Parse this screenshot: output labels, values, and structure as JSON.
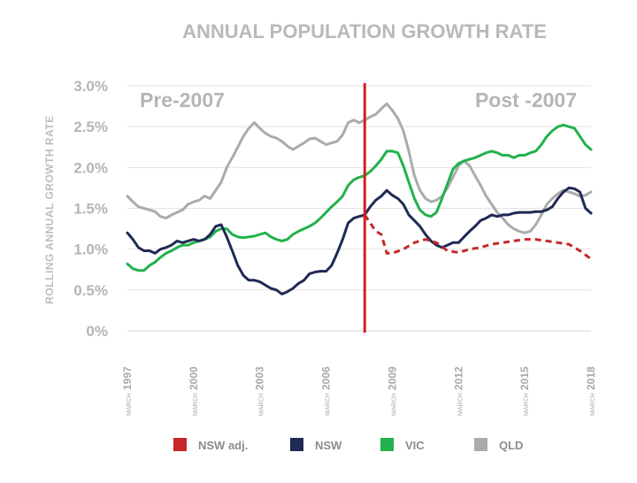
{
  "chart_data": {
    "type": "line",
    "title": "ANNUAL POPULATION GROWTH RATE",
    "xlabel": "",
    "ylabel": "ROLLING ANNUAL GROWTH RATE",
    "xlim": [
      1997,
      2018
    ],
    "ylim": [
      0,
      3.0
    ],
    "y_ticks": [
      {
        "value": 3.0,
        "label": "3.0%"
      },
      {
        "value": 2.5,
        "label": "2.5%"
      },
      {
        "value": 2.0,
        "label": "2.0%"
      },
      {
        "value": 1.5,
        "label": "1.5%"
      },
      {
        "value": 1.0,
        "label": "1.0%"
      },
      {
        "value": 0.5,
        "label": "0.5%"
      },
      {
        "value": 0.0,
        "label": "0%"
      }
    ],
    "x_ticks": [
      {
        "value": 1997,
        "month": "MARCH",
        "year": "1997"
      },
      {
        "value": 2000,
        "month": "MARCH",
        "year": "2000"
      },
      {
        "value": 2003,
        "month": "MARCH",
        "year": "2003"
      },
      {
        "value": 2006,
        "month": "MARCH",
        "year": "2006"
      },
      {
        "value": 2009,
        "month": "MARCH",
        "year": "2009"
      },
      {
        "value": 2012,
        "month": "MARCH",
        "year": "2012"
      },
      {
        "value": 2015,
        "month": "MARCH",
        "year": "2015"
      },
      {
        "value": 2018,
        "month": "MARCH",
        "year": "2018"
      }
    ],
    "grid": "horizontal",
    "divider": {
      "x": 2007.75,
      "color": "#d3201f"
    },
    "annotations": [
      {
        "text": "Pre-2007",
        "position": "top-left"
      },
      {
        "text": "Post -2007",
        "position": "top-right"
      }
    ],
    "series": [
      {
        "name": "NSW adj.",
        "color": "#c62828",
        "dashed": true,
        "points": [
          [
            2007.75,
            1.42
          ],
          [
            2008.0,
            1.32
          ],
          [
            2008.25,
            1.22
          ],
          [
            2008.5,
            1.18
          ],
          [
            2008.75,
            0.95
          ],
          [
            2009.0,
            0.95
          ],
          [
            2009.5,
            1.0
          ],
          [
            2010.0,
            1.08
          ],
          [
            2010.5,
            1.12
          ],
          [
            2011.0,
            1.08
          ],
          [
            2011.5,
            0.98
          ],
          [
            2012.0,
            0.96
          ],
          [
            2012.5,
            1.0
          ],
          [
            2013.0,
            1.02
          ],
          [
            2013.5,
            1.06
          ],
          [
            2014.0,
            1.08
          ],
          [
            2014.5,
            1.1
          ],
          [
            2015.0,
            1.12
          ],
          [
            2015.5,
            1.12
          ],
          [
            2016.0,
            1.1
          ],
          [
            2016.5,
            1.08
          ],
          [
            2017.0,
            1.06
          ],
          [
            2017.5,
            0.98
          ],
          [
            2018.0,
            0.88
          ]
        ]
      },
      {
        "name": "NSW",
        "color": "#1f2a55",
        "dashed": false,
        "points": [
          [
            1997.0,
            1.2
          ],
          [
            1997.25,
            1.12
          ],
          [
            1997.5,
            1.02
          ],
          [
            1997.75,
            0.98
          ],
          [
            1998.0,
            0.98
          ],
          [
            1998.25,
            0.95
          ],
          [
            1998.5,
            1.0
          ],
          [
            1998.75,
            1.02
          ],
          [
            1999.0,
            1.05
          ],
          [
            1999.25,
            1.1
          ],
          [
            1999.5,
            1.08
          ],
          [
            1999.75,
            1.1
          ],
          [
            2000.0,
            1.12
          ],
          [
            2000.25,
            1.1
          ],
          [
            2000.5,
            1.12
          ],
          [
            2000.75,
            1.18
          ],
          [
            2001.0,
            1.28
          ],
          [
            2001.25,
            1.3
          ],
          [
            2001.5,
            1.15
          ],
          [
            2001.75,
            0.98
          ],
          [
            2002.0,
            0.8
          ],
          [
            2002.25,
            0.68
          ],
          [
            2002.5,
            0.62
          ],
          [
            2002.75,
            0.62
          ],
          [
            2003.0,
            0.6
          ],
          [
            2003.25,
            0.56
          ],
          [
            2003.5,
            0.52
          ],
          [
            2003.75,
            0.5
          ],
          [
            2004.0,
            0.45
          ],
          [
            2004.25,
            0.48
          ],
          [
            2004.5,
            0.52
          ],
          [
            2004.75,
            0.58
          ],
          [
            2005.0,
            0.62
          ],
          [
            2005.25,
            0.7
          ],
          [
            2005.5,
            0.72
          ],
          [
            2005.75,
            0.73
          ],
          [
            2006.0,
            0.73
          ],
          [
            2006.25,
            0.8
          ],
          [
            2006.5,
            0.95
          ],
          [
            2006.75,
            1.12
          ],
          [
            2007.0,
            1.32
          ],
          [
            2007.25,
            1.38
          ],
          [
            2007.5,
            1.4
          ],
          [
            2007.75,
            1.42
          ],
          [
            2008.0,
            1.52
          ],
          [
            2008.25,
            1.6
          ],
          [
            2008.5,
            1.65
          ],
          [
            2008.75,
            1.72
          ],
          [
            2009.0,
            1.66
          ],
          [
            2009.25,
            1.62
          ],
          [
            2009.5,
            1.55
          ],
          [
            2009.75,
            1.42
          ],
          [
            2010.0,
            1.35
          ],
          [
            2010.25,
            1.28
          ],
          [
            2010.5,
            1.18
          ],
          [
            2010.75,
            1.1
          ],
          [
            2011.0,
            1.05
          ],
          [
            2011.25,
            1.02
          ],
          [
            2011.5,
            1.05
          ],
          [
            2011.75,
            1.08
          ],
          [
            2012.0,
            1.08
          ],
          [
            2012.25,
            1.15
          ],
          [
            2012.5,
            1.22
          ],
          [
            2012.75,
            1.28
          ],
          [
            2013.0,
            1.35
          ],
          [
            2013.25,
            1.38
          ],
          [
            2013.5,
            1.42
          ],
          [
            2013.75,
            1.4
          ],
          [
            2014.0,
            1.42
          ],
          [
            2014.25,
            1.42
          ],
          [
            2014.5,
            1.44
          ],
          [
            2014.75,
            1.45
          ],
          [
            2015.0,
            1.45
          ],
          [
            2015.25,
            1.45
          ],
          [
            2015.5,
            1.46
          ],
          [
            2015.75,
            1.46
          ],
          [
            2016.0,
            1.48
          ],
          [
            2016.25,
            1.52
          ],
          [
            2016.5,
            1.62
          ],
          [
            2016.75,
            1.7
          ],
          [
            2017.0,
            1.75
          ],
          [
            2017.25,
            1.74
          ],
          [
            2017.5,
            1.7
          ],
          [
            2017.75,
            1.5
          ],
          [
            2018.0,
            1.44
          ]
        ]
      },
      {
        "name": "VIC",
        "color": "#22b14c",
        "dashed": false,
        "points": [
          [
            1997.0,
            0.82
          ],
          [
            1997.25,
            0.76
          ],
          [
            1997.5,
            0.74
          ],
          [
            1997.75,
            0.74
          ],
          [
            1998.0,
            0.8
          ],
          [
            1998.25,
            0.84
          ],
          [
            1998.5,
            0.9
          ],
          [
            1998.75,
            0.95
          ],
          [
            1999.0,
            0.98
          ],
          [
            1999.25,
            1.02
          ],
          [
            1999.5,
            1.05
          ],
          [
            1999.75,
            1.05
          ],
          [
            2000.0,
            1.08
          ],
          [
            2000.25,
            1.1
          ],
          [
            2000.5,
            1.12
          ],
          [
            2000.75,
            1.15
          ],
          [
            2001.0,
            1.22
          ],
          [
            2001.25,
            1.25
          ],
          [
            2001.5,
            1.25
          ],
          [
            2001.75,
            1.18
          ],
          [
            2002.0,
            1.15
          ],
          [
            2002.25,
            1.14
          ],
          [
            2002.5,
            1.15
          ],
          [
            2002.75,
            1.16
          ],
          [
            2003.0,
            1.18
          ],
          [
            2003.25,
            1.2
          ],
          [
            2003.5,
            1.15
          ],
          [
            2003.75,
            1.12
          ],
          [
            2004.0,
            1.1
          ],
          [
            2004.25,
            1.12
          ],
          [
            2004.5,
            1.18
          ],
          [
            2004.75,
            1.22
          ],
          [
            2005.0,
            1.25
          ],
          [
            2005.25,
            1.28
          ],
          [
            2005.5,
            1.32
          ],
          [
            2005.75,
            1.38
          ],
          [
            2006.0,
            1.45
          ],
          [
            2006.25,
            1.52
          ],
          [
            2006.5,
            1.58
          ],
          [
            2006.75,
            1.65
          ],
          [
            2007.0,
            1.78
          ],
          [
            2007.25,
            1.85
          ],
          [
            2007.5,
            1.88
          ],
          [
            2007.75,
            1.9
          ],
          [
            2008.0,
            1.95
          ],
          [
            2008.25,
            2.02
          ],
          [
            2008.5,
            2.1
          ],
          [
            2008.75,
            2.2
          ],
          [
            2009.0,
            2.2
          ],
          [
            2009.25,
            2.18
          ],
          [
            2009.5,
            2.02
          ],
          [
            2009.75,
            1.82
          ],
          [
            2010.0,
            1.62
          ],
          [
            2010.25,
            1.48
          ],
          [
            2010.5,
            1.42
          ],
          [
            2010.75,
            1.4
          ],
          [
            2011.0,
            1.45
          ],
          [
            2011.25,
            1.62
          ],
          [
            2011.5,
            1.8
          ],
          [
            2011.75,
            1.98
          ],
          [
            2012.0,
            2.05
          ],
          [
            2012.25,
            2.08
          ],
          [
            2012.5,
            2.1
          ],
          [
            2012.75,
            2.12
          ],
          [
            2013.0,
            2.15
          ],
          [
            2013.25,
            2.18
          ],
          [
            2013.5,
            2.2
          ],
          [
            2013.75,
            2.18
          ],
          [
            2014.0,
            2.15
          ],
          [
            2014.25,
            2.15
          ],
          [
            2014.5,
            2.12
          ],
          [
            2014.75,
            2.15
          ],
          [
            2015.0,
            2.15
          ],
          [
            2015.25,
            2.18
          ],
          [
            2015.5,
            2.2
          ],
          [
            2015.75,
            2.28
          ],
          [
            2016.0,
            2.38
          ],
          [
            2016.25,
            2.45
          ],
          [
            2016.5,
            2.5
          ],
          [
            2016.75,
            2.52
          ],
          [
            2017.0,
            2.5
          ],
          [
            2017.25,
            2.48
          ],
          [
            2017.5,
            2.38
          ],
          [
            2017.75,
            2.28
          ],
          [
            2018.0,
            2.22
          ]
        ]
      },
      {
        "name": "QLD",
        "color": "#ababab",
        "dashed": false,
        "points": [
          [
            1997.0,
            1.65
          ],
          [
            1997.25,
            1.58
          ],
          [
            1997.5,
            1.52
          ],
          [
            1997.75,
            1.5
          ],
          [
            1998.0,
            1.48
          ],
          [
            1998.25,
            1.46
          ],
          [
            1998.5,
            1.4
          ],
          [
            1998.75,
            1.38
          ],
          [
            1999.0,
            1.42
          ],
          [
            1999.25,
            1.45
          ],
          [
            1999.5,
            1.48
          ],
          [
            1999.75,
            1.55
          ],
          [
            2000.0,
            1.58
          ],
          [
            2000.25,
            1.6
          ],
          [
            2000.5,
            1.65
          ],
          [
            2000.75,
            1.62
          ],
          [
            2001.0,
            1.72
          ],
          [
            2001.25,
            1.82
          ],
          [
            2001.5,
            2.0
          ],
          [
            2001.75,
            2.12
          ],
          [
            2002.0,
            2.25
          ],
          [
            2002.25,
            2.38
          ],
          [
            2002.5,
            2.48
          ],
          [
            2002.75,
            2.55
          ],
          [
            2003.0,
            2.48
          ],
          [
            2003.25,
            2.42
          ],
          [
            2003.5,
            2.38
          ],
          [
            2003.75,
            2.36
          ],
          [
            2004.0,
            2.32
          ],
          [
            2004.25,
            2.26
          ],
          [
            2004.5,
            2.22
          ],
          [
            2004.75,
            2.26
          ],
          [
            2005.0,
            2.3
          ],
          [
            2005.25,
            2.35
          ],
          [
            2005.5,
            2.36
          ],
          [
            2005.75,
            2.32
          ],
          [
            2006.0,
            2.28
          ],
          [
            2006.25,
            2.3
          ],
          [
            2006.5,
            2.32
          ],
          [
            2006.75,
            2.4
          ],
          [
            2007.0,
            2.55
          ],
          [
            2007.25,
            2.58
          ],
          [
            2007.5,
            2.55
          ],
          [
            2007.75,
            2.58
          ],
          [
            2008.0,
            2.62
          ],
          [
            2008.25,
            2.65
          ],
          [
            2008.5,
            2.72
          ],
          [
            2008.75,
            2.78
          ],
          [
            2009.0,
            2.7
          ],
          [
            2009.25,
            2.6
          ],
          [
            2009.5,
            2.45
          ],
          [
            2009.75,
            2.2
          ],
          [
            2010.0,
            1.9
          ],
          [
            2010.25,
            1.72
          ],
          [
            2010.5,
            1.62
          ],
          [
            2010.75,
            1.58
          ],
          [
            2011.0,
            1.6
          ],
          [
            2011.25,
            1.65
          ],
          [
            2011.5,
            1.75
          ],
          [
            2011.75,
            1.88
          ],
          [
            2012.0,
            2.02
          ],
          [
            2012.25,
            2.08
          ],
          [
            2012.5,
            2.02
          ],
          [
            2012.75,
            1.9
          ],
          [
            2013.0,
            1.78
          ],
          [
            2013.25,
            1.65
          ],
          [
            2013.5,
            1.55
          ],
          [
            2013.75,
            1.45
          ],
          [
            2014.0,
            1.38
          ],
          [
            2014.25,
            1.3
          ],
          [
            2014.5,
            1.25
          ],
          [
            2014.75,
            1.22
          ],
          [
            2015.0,
            1.2
          ],
          [
            2015.25,
            1.22
          ],
          [
            2015.5,
            1.3
          ],
          [
            2015.75,
            1.42
          ],
          [
            2016.0,
            1.55
          ],
          [
            2016.25,
            1.62
          ],
          [
            2016.5,
            1.68
          ],
          [
            2016.75,
            1.72
          ],
          [
            2017.0,
            1.7
          ],
          [
            2017.25,
            1.68
          ],
          [
            2017.5,
            1.65
          ],
          [
            2017.75,
            1.66
          ],
          [
            2018.0,
            1.7
          ]
        ]
      }
    ],
    "legend": {
      "position": "bottom",
      "items": [
        {
          "label": "NSW adj.",
          "color": "#c62828"
        },
        {
          "label": "NSW",
          "color": "#1f2a55"
        },
        {
          "label": "VIC",
          "color": "#22b14c"
        },
        {
          "label": "QLD",
          "color": "#ababab"
        }
      ]
    }
  }
}
